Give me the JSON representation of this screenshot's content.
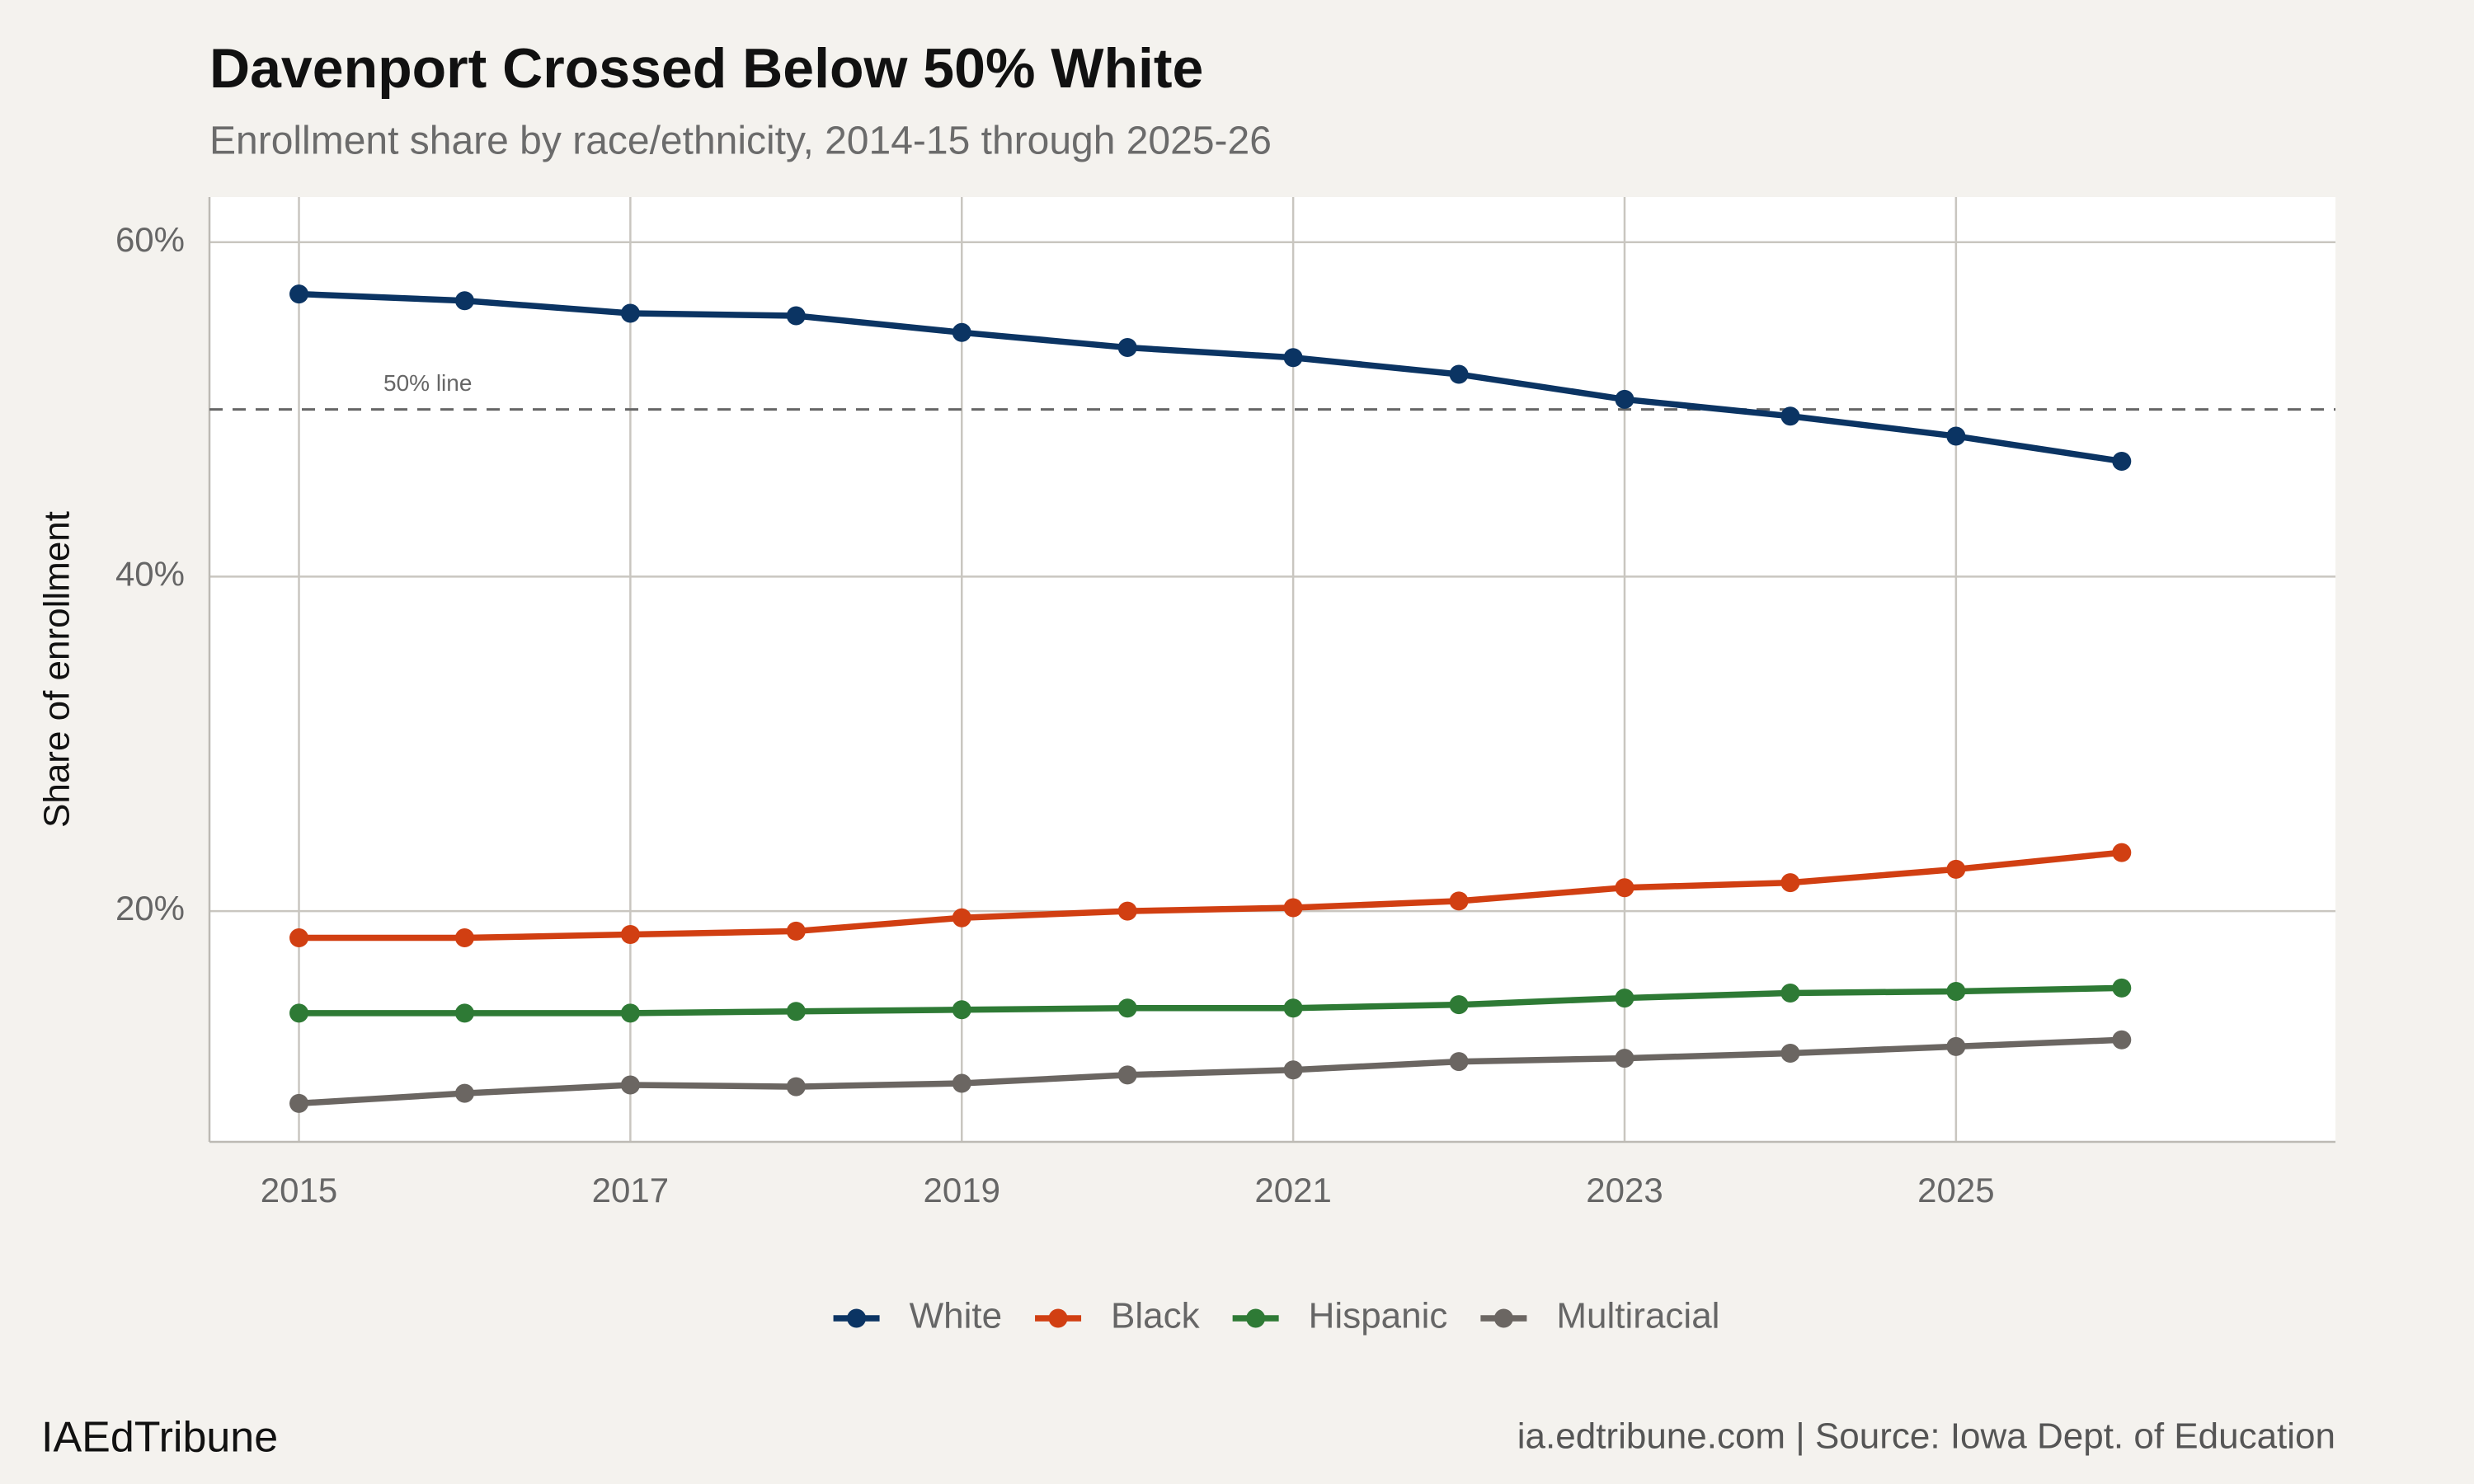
{
  "chart_data": {
    "type": "line",
    "title": "Davenport Crossed Below 50% White",
    "subtitle": "Enrollment share by race/ethnicity, 2014-15 through 2025-26",
    "y_label": "Share of enrollment",
    "x": [
      2015,
      2016,
      2017,
      2018,
      2019,
      2020,
      2021,
      2022,
      2023,
      2024,
      2025,
      2026
    ],
    "series": [
      {
        "name": "White",
        "color": "#0b3463",
        "values": [
          56.9,
          56.5,
          55.75,
          55.6,
          54.6,
          53.7,
          53.1,
          52.1,
          50.6,
          49.6,
          48.4,
          46.9
        ]
      },
      {
        "name": "Black",
        "color": "#d13f12",
        "values": [
          18.4,
          18.4,
          18.6,
          18.8,
          19.6,
          20.0,
          20.2,
          20.6,
          21.4,
          21.7,
          22.5,
          23.5
        ]
      },
      {
        "name": "Hispanic",
        "color": "#2e7a35",
        "values": [
          13.9,
          13.9,
          13.9,
          14.0,
          14.1,
          14.2,
          14.2,
          14.4,
          14.8,
          15.1,
          15.2,
          15.4
        ]
      },
      {
        "name": "Multiracial",
        "color": "#6b6662",
        "values": [
          8.5,
          9.1,
          9.6,
          9.5,
          9.7,
          10.2,
          10.5,
          11.0,
          11.2,
          11.5,
          11.9,
          12.3
        ]
      }
    ],
    "xlim": [
      2014.46,
      2027.29
    ],
    "xticks": [
      2015,
      2017,
      2019,
      2021,
      2023,
      2025
    ],
    "ylim": [
      6.2,
      62.7
    ],
    "yticks": [
      {
        "value": 20,
        "label": "20%"
      },
      {
        "value": 40,
        "label": "40%"
      },
      {
        "value": 60,
        "label": "60%"
      }
    ],
    "grid": true,
    "reference_line": {
      "value": 50,
      "label": "50% line"
    },
    "legend": "bottom",
    "footer_left": "IAEdTribune",
    "footer_right": "ia.edtribune.com | Source: Iowa Dept. of Education"
  }
}
